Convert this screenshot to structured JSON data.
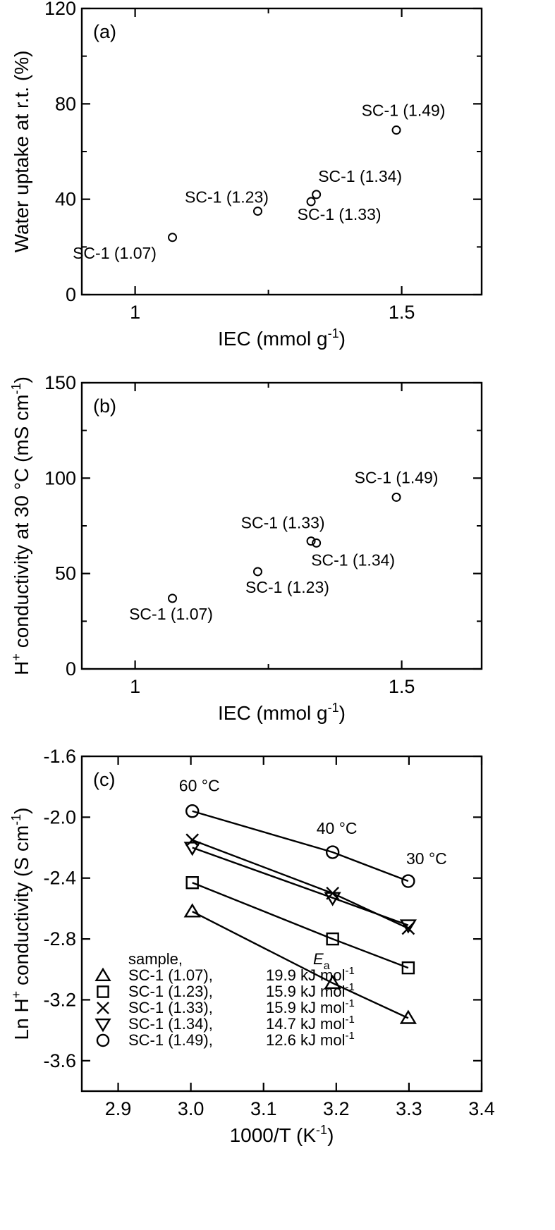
{
  "chart_data": [
    {
      "type": "scatter",
      "panel_label": "(a)",
      "xlabel": "IEC (mmol g",
      "xlabel_sup": "-1",
      "xlabel_close": ")",
      "ylabel": "Water uptake at r.t. (%)",
      "xlim": [
        0.9,
        1.65
      ],
      "ylim": [
        0,
        120
      ],
      "xticks": [
        1,
        1.5
      ],
      "xtick_labels": [
        "1",
        "1.5"
      ],
      "xminor": [
        1.25
      ],
      "yticks": [
        0,
        40,
        80,
        120
      ],
      "ytick_labels": [
        "0",
        "40",
        "80",
        "120"
      ],
      "yminor": [
        20,
        60,
        100
      ],
      "points": [
        {
          "label": "SC-1 (1.07)",
          "x": 1.07,
          "y": 24
        },
        {
          "label": "SC-1 (1.23)",
          "x": 1.23,
          "y": 35
        },
        {
          "label": "SC-1 (1.33)",
          "x": 1.33,
          "y": 39
        },
        {
          "label": "SC-1 (1.34)",
          "x": 1.34,
          "y": 42
        },
        {
          "label": "SC-1 (1.49)",
          "x": 1.49,
          "y": 69
        }
      ]
    },
    {
      "type": "scatter",
      "panel_label": "(b)",
      "xlabel": "IEC (mmol g",
      "xlabel_sup": "-1",
      "xlabel_close": ")",
      "ylabel_pre": "H",
      "ylabel_sup1": "+",
      "ylabel_mid": " conductivity at 30 °C (mS cm",
      "ylabel_sup2": "-1",
      "ylabel_close": ")",
      "xlim": [
        0.9,
        1.65
      ],
      "ylim": [
        0,
        150
      ],
      "xticks": [
        1,
        1.5
      ],
      "xtick_labels": [
        "1",
        "1.5"
      ],
      "xminor": [
        1.25
      ],
      "yticks": [
        0,
        50,
        100,
        150
      ],
      "ytick_labels": [
        "0",
        "50",
        "100",
        "150"
      ],
      "yminor": [
        25,
        75,
        125
      ],
      "points": [
        {
          "label": "SC-1 (1.07)",
          "x": 1.07,
          "y": 37
        },
        {
          "label": "SC-1 (1.23)",
          "x": 1.23,
          "y": 51
        },
        {
          "label": "SC-1 (1.33)",
          "x": 1.33,
          "y": 67
        },
        {
          "label": "SC-1 (1.34)",
          "x": 1.34,
          "y": 66
        },
        {
          "label": "SC-1 (1.49)",
          "x": 1.49,
          "y": 90
        }
      ]
    },
    {
      "type": "line",
      "panel_label": "(c)",
      "xlabel": "1000/T (K",
      "xlabel_sup": "-1",
      "xlabel_close": ")",
      "ylabel_pre": "Ln H",
      "ylabel_sup1": "+",
      "ylabel_mid": " conductivity (S cm",
      "ylabel_sup2": "-1",
      "ylabel_close": ")",
      "xlim": [
        2.85,
        3.4
      ],
      "ylim": [
        -3.8,
        -1.6
      ],
      "xticks": [
        2.9,
        3.0,
        3.1,
        3.2,
        3.3,
        3.4
      ],
      "xtick_labels": [
        "2.9",
        "3.0",
        "3.1",
        "3.2",
        "3.3",
        "3.4"
      ],
      "yticks": [
        -1.6,
        -2.0,
        -2.4,
        -2.8,
        -3.2,
        -3.6
      ],
      "ytick_labels": [
        "-1.6",
        "-2.0",
        "-2.4",
        "-2.8",
        "-3.2",
        "-3.6"
      ],
      "temperature_labels": [
        {
          "text": "60 °C",
          "x": 3.002
        },
        {
          "text": "40 °C",
          "x": 3.195
        },
        {
          "text": "30 °C",
          "x": 3.299
        }
      ],
      "legend": {
        "header_sample": "sample,",
        "header_ea": "E",
        "header_ea_sub": "a",
        "unit": "kJ mol",
        "unit_sup": "-1"
      },
      "x": [
        3.002,
        3.195,
        3.299
      ],
      "series": [
        {
          "name": "SC-1 (1.07)",
          "ea": "19.9",
          "marker": "triangle-up",
          "values": [
            -2.62,
            -3.09,
            -3.32
          ]
        },
        {
          "name": "SC-1 (1.23)",
          "ea": "15.9",
          "marker": "square",
          "values": [
            -2.43,
            -2.8,
            -2.99
          ]
        },
        {
          "name": "SC-1 (1.33)",
          "ea": "15.9",
          "marker": "x",
          "values": [
            -2.15,
            -2.5,
            -2.73
          ]
        },
        {
          "name": "SC-1 (1.34)",
          "ea": "14.7",
          "marker": "triangle-down",
          "values": [
            -2.2,
            -2.53,
            -2.71
          ]
        },
        {
          "name": "SC-1 (1.49)",
          "ea": "12.6",
          "marker": "circle",
          "values": [
            -1.96,
            -2.23,
            -2.42
          ]
        }
      ]
    }
  ]
}
